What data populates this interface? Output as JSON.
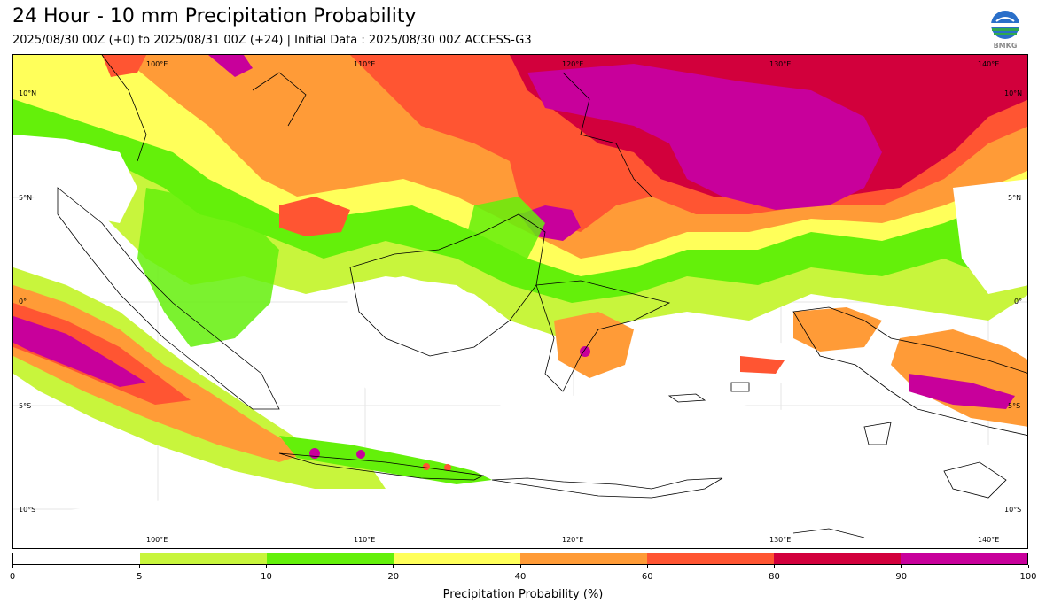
{
  "header": {
    "title": "24 Hour - 10 mm Precipitation Probability",
    "subtitle": "2025/08/30 00Z (+0) to 2025/08/31 00Z (+24) | Initial Data : 2025/08/30 00Z ACCESS-G3",
    "logo_text": "BMKG"
  },
  "map": {
    "lon_labels": [
      "100°E",
      "110°E",
      "120°E",
      "130°E",
      "140°E"
    ],
    "lat_labels": [
      "10°N",
      "5°N",
      "0°",
      "5°S",
      "10°S"
    ]
  },
  "colorbar": {
    "label": "Precipitation Probability (%)",
    "ticks": [
      "0",
      "5",
      "10",
      "20",
      "40",
      "60",
      "80",
      "90",
      "100"
    ],
    "colors": [
      "#ffffff",
      "#c8f53c",
      "#64f00a",
      "#ffff5a",
      "#ff9b37",
      "#ff5532",
      "#d2003c",
      "#c8009b"
    ]
  }
}
